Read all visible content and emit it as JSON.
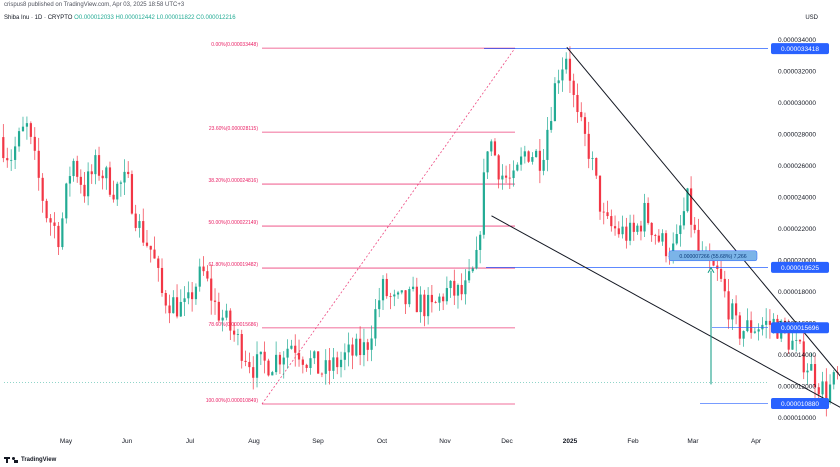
{
  "header": {
    "published": "crispus8 published on TradingView.com, Apr 03, 2025 18:58 UTC+3",
    "pair": "Shiba Inu · 1D · CRYPTO",
    "ohlc": "O0.000012033 H0.000012442 L0.000011822 C0.000012216",
    "currency": "USD"
  },
  "footer": {
    "logo_text": "TradingView"
  },
  "colors": {
    "up": "#22ab94",
    "down": "#f23645",
    "fib": "#e91e63",
    "wedge": "#131722",
    "label_bg": "#2962ff",
    "measure": "#089981"
  },
  "chart_data": {
    "type": "candlestick",
    "title": "Shiba Inu · 1D · CRYPTO",
    "x_ticks": [
      "May",
      "Jun",
      "Jul",
      "Aug",
      "Sep",
      "Oct",
      "Nov",
      "Dec",
      "2025",
      "Feb",
      "Mar",
      "Apr"
    ],
    "y_ticks": [
      "0.000034000",
      "0.000032000",
      "0.000030000",
      "0.000028000",
      "0.000026000",
      "0.000024000",
      "0.000022000",
      "0.000020000",
      "0.000018000",
      "0.000016000",
      "0.000014000",
      "0.000012000",
      "0.000010000"
    ],
    "ylim": [
      9.2e-06,
      3.46e-05
    ],
    "axis_labels": [
      {
        "value": 3.3418e-05,
        "text": "0.000033418"
      },
      {
        "value": 1.9525e-05,
        "text": "0.000019525"
      },
      {
        "value": 1.5696e-05,
        "text": "0.000015696"
      },
      {
        "value": 1.088e-05,
        "text": "0.000010880"
      }
    ],
    "fib_levels": [
      {
        "label": "0.00%(0.000033448)",
        "value": 3.3448e-05
      },
      {
        "label": "23.60%(0.000028115)",
        "value": 2.8115e-05
      },
      {
        "label": "38.20%(0.000024816)",
        "value": 2.4816e-05
      },
      {
        "label": "50.00%(0.000022149)",
        "value": 2.2149e-05
      },
      {
        "label": "61.80%(0.000019482)",
        "value": 1.9482e-05
      },
      {
        "label": "78.60%(0.000015686)",
        "value": 1.5686e-05
      },
      {
        "label": "100.00%(0.000010849)",
        "value": 1.0849e-05
      }
    ],
    "measure_label": "0.000007266 (55.68%) 7,266",
    "price_path": [
      {
        "t": 0,
        "p": 2.78e-05
      },
      {
        "t": 0.15,
        "p": 2.65e-05
      },
      {
        "t": 0.4,
        "p": 2.85e-05
      },
      {
        "t": 0.7,
        "p": 2.3e-05
      },
      {
        "t": 0.9,
        "p": 2.15e-05
      },
      {
        "t": 1.1,
        "p": 2.65e-05
      },
      {
        "t": 1.3,
        "p": 2.45e-05
      },
      {
        "t": 1.5,
        "p": 2.6e-05
      },
      {
        "t": 1.8,
        "p": 2.45e-05
      },
      {
        "t": 2.0,
        "p": 2.5e-05
      },
      {
        "t": 2.2,
        "p": 2.2e-05
      },
      {
        "t": 2.4,
        "p": 2.05e-05
      },
      {
        "t": 2.55,
        "p": 1.78e-05
      },
      {
        "t": 2.75,
        "p": 1.72e-05
      },
      {
        "t": 2.95,
        "p": 1.68e-05
      },
      {
        "t": 3.05,
        "p": 1.82e-05
      },
      {
        "t": 3.2,
        "p": 1.92e-05
      },
      {
        "t": 3.4,
        "p": 1.7e-05
      },
      {
        "t": 3.6,
        "p": 1.58e-05
      },
      {
        "t": 3.8,
        "p": 1.45e-05
      },
      {
        "t": 4.0,
        "p": 1.32e-05
      },
      {
        "t": 4.3,
        "p": 1.36e-05
      },
      {
        "t": 4.6,
        "p": 1.48e-05
      },
      {
        "t": 4.85,
        "p": 1.36e-05
      },
      {
        "t": 5.1,
        "p": 1.28e-05
      },
      {
        "t": 5.4,
        "p": 1.38e-05
      },
      {
        "t": 5.75,
        "p": 1.44e-05
      },
      {
        "t": 6.0,
        "p": 1.82e-05
      },
      {
        "t": 6.2,
        "p": 1.72e-05
      },
      {
        "t": 6.5,
        "p": 1.75e-05
      },
      {
        "t": 6.8,
        "p": 1.68e-05
      },
      {
        "t": 7.0,
        "p": 1.8e-05
      },
      {
        "t": 7.3,
        "p": 1.78e-05
      },
      {
        "t": 7.5,
        "p": 1.95e-05
      },
      {
        "t": 7.7,
        "p": 2.8e-05
      },
      {
        "t": 7.9,
        "p": 2.55e-05
      },
      {
        "t": 8.1,
        "p": 2.48e-05
      },
      {
        "t": 8.3,
        "p": 2.7e-05
      },
      {
        "t": 8.55,
        "p": 2.65e-05
      },
      {
        "t": 8.8,
        "p": 3.18e-05
      },
      {
        "t": 8.95,
        "p": 3.32e-05
      },
      {
        "t": 9.1,
        "p": 2.9e-05
      },
      {
        "t": 9.3,
        "p": 2.7e-05
      },
      {
        "t": 9.55,
        "p": 2.22e-05
      },
      {
        "t": 9.8,
        "p": 2.18e-05
      },
      {
        "t": 10.0,
        "p": 2.15e-05
      },
      {
        "t": 10.2,
        "p": 2.3e-05
      },
      {
        "t": 10.45,
        "p": 2.12e-05
      },
      {
        "t": 10.7,
        "p": 2.05e-05
      },
      {
        "t": 10.9,
        "p": 2.38e-05
      },
      {
        "t": 11.1,
        "p": 2.02e-05
      },
      {
        "t": 11.4,
        "p": 1.9e-05
      },
      {
        "t": 11.7,
        "p": 1.55e-05
      },
      {
        "t": 12.0,
        "p": 1.58e-05
      },
      {
        "t": 12.3,
        "p": 1.6e-05
      },
      {
        "t": 12.55,
        "p": 1.48e-05
      },
      {
        "t": 12.85,
        "p": 1.32e-05
      },
      {
        "t": 13.1,
        "p": 1.15e-05
      },
      {
        "t": 13.3,
        "p": 1.25e-05
      },
      {
        "t": 13.55,
        "p": 1.28e-05
      },
      {
        "t": 13.75,
        "p": 1.42e-05
      },
      {
        "t": 13.9,
        "p": 1.3e-05
      },
      {
        "t": 14.1,
        "p": 1.22e-05
      }
    ]
  }
}
